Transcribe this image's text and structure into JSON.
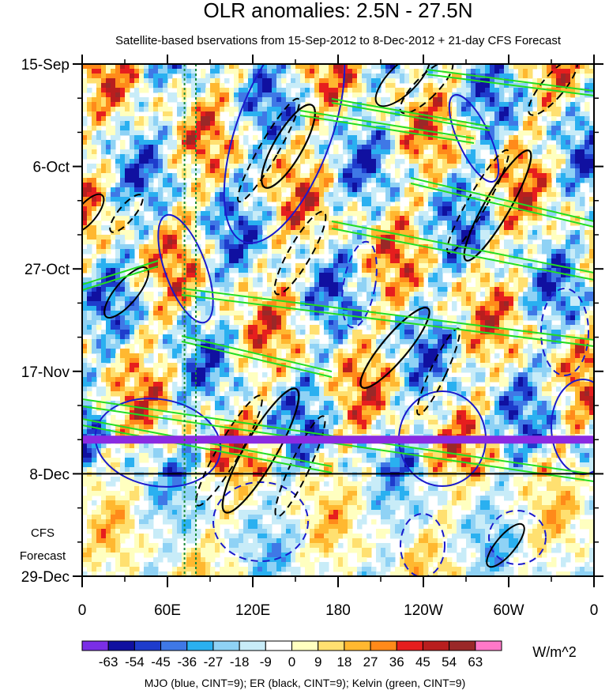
{
  "chart_data": {
    "type": "heatmap",
    "title": "OLR anomalies: 2.5N - 27.5N",
    "subtitle": "Satellite-based bservations from 15-Sep-2012 to 8-Dec-2012 + 21-day CFS Forecast",
    "x_ticks": [
      "0",
      "60E",
      "120E",
      "180",
      "120W",
      "60W",
      "0"
    ],
    "x_tick_values": [
      0,
      60,
      120,
      180,
      240,
      300,
      360
    ],
    "xlim": [
      0,
      360
    ],
    "y_ticks": [
      "15-Sep",
      "6-Oct",
      "27-Oct",
      "17-Nov",
      "8-Dec",
      "29-Dec"
    ],
    "y_tick_days": [
      0,
      21,
      42,
      63,
      84,
      105
    ],
    "ylim_days": [
      0,
      105
    ],
    "forecast_label_line1": "CFS",
    "forecast_label_line2": "Forecast",
    "forecast_start_day": 84,
    "marker_day": 77,
    "marker_color": "#8a2be2",
    "reference_longitudes": [
      72,
      80
    ],
    "reference_line_color": "#1a8a3a",
    "colorbar": {
      "levels": [
        "-63",
        "-54",
        "-45",
        "-36",
        "-27",
        "-18",
        "-9",
        "0",
        "9",
        "18",
        "27",
        "36",
        "45",
        "54",
        "63"
      ],
      "colors": [
        "#7a2ee6",
        "#1010a0",
        "#1e3ccc",
        "#3f78e6",
        "#2ab0f0",
        "#8fd2f5",
        "#c8ecf8",
        "#ffffff",
        "#ffffc0",
        "#ffe070",
        "#ffb830",
        "#ff8a1a",
        "#e61e1e",
        "#b81e1e",
        "#9a2828",
        "#ff78c8"
      ],
      "units": "W/m^2"
    },
    "contour_legend": "MJO (blue, CINT=9); ER (black, CINT=9); Kelvin (green, CINT=9)",
    "series": [
      {
        "name": "MJO",
        "color": "#1a1acc"
      },
      {
        "name": "ER",
        "color": "#000000"
      },
      {
        "name": "Kelvin",
        "color": "#22dd22"
      }
    ]
  }
}
